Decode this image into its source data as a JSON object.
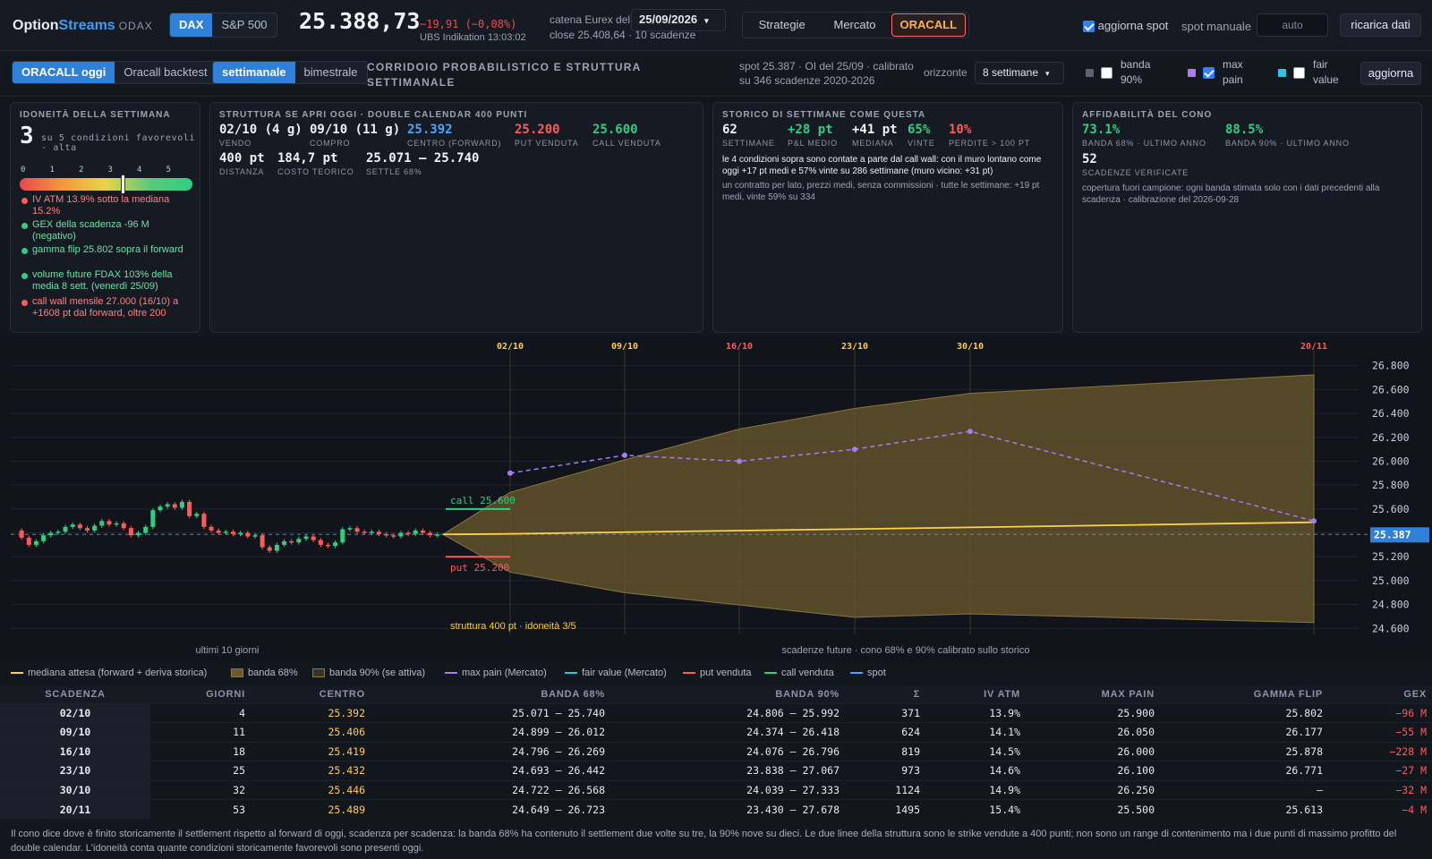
{
  "header": {
    "brand_a": "Option",
    "brand_b": "Streams",
    "brand_sub": "ODAX",
    "instruments": [
      "DAX",
      "S&P 500"
    ],
    "price": "25.388,73",
    "change": "−19,91 (−0,08%)",
    "ubs": "UBS Indikation 13:03:02",
    "chain_label": "catena Eurex del",
    "chain_date": "25/09/2026",
    "chain_info": "close 25.408,64 · 10 scadenze",
    "tabs": [
      "Strategie",
      "Mercato",
      "ORACALL"
    ],
    "spot_update_label": "aggiorna spot",
    "manual_spot_label": "spot manuale",
    "manual_spot_placeholder": "auto",
    "reload_label": "ricarica dati"
  },
  "subheader": {
    "modes": [
      "ORACALL oggi",
      "Oracall backtest"
    ],
    "periods": [
      "settimanale",
      "bimestrale"
    ],
    "title": "CORRIDOIO PROBABILISTICO E STRUTTURA SETTIMANALE",
    "spot_info_1": "spot 25.387 · OI del 25/09 · calibrato",
    "spot_info_2": "su 346 scadenze 2020-2026",
    "horizon_label": "orizzonte",
    "horizon_value": "8 settimane",
    "toggles": [
      {
        "label1": "banda",
        "label2": "90%",
        "color": "#5b6472",
        "checked": false
      },
      {
        "label1": "max",
        "label2": "pain",
        "color": "#a77df0",
        "checked": true
      },
      {
        "label1": "fair",
        "label2": "value",
        "color": "#2ec4e6",
        "checked": false
      }
    ],
    "update_label": "aggiorna"
  },
  "suitability": {
    "title": "IDONEITÀ DELLA SETTIMANA",
    "score": "3",
    "desc": "su 5 condizioni favorevoli · alta",
    "score_value": 3,
    "scale": [
      "0",
      "1",
      "2",
      "3",
      "4",
      "5"
    ],
    "conditions": [
      {
        "text": "IV ATM 13.9% sotto la mediana 15.2%",
        "color": "#ff5a5a",
        "text_color": "#ff8080"
      },
      {
        "text": "GEX della scadenza -96 M (negativo)",
        "color": "#2fcf82",
        "text_color": "#6fe0a6"
      },
      {
        "text": "gamma flip 25.802 sopra il forward",
        "color": "#2fcf82",
        "text_color": "#6fe0a6"
      },
      {
        "text": "volume future FDAX 103% della media 8 sett. (venerdì 25/09)",
        "color": "#2fcf82",
        "text_color": "#6fe0a6"
      },
      {
        "text": "call wall mensile 27.000 (16/10) a +1608 pt dal forward, oltre 200",
        "color": "#ff5a5a",
        "text_color": "#ff8080"
      }
    ]
  },
  "structure": {
    "title": "STRUTTURA SE APRI OGGI · DOUBLE CALENDAR 400 PUNTI",
    "row1": [
      {
        "v": "02/10 (4 g)",
        "k": "VENDO",
        "color": "#eef1f5"
      },
      {
        "v": "09/10 (11 g)",
        "k": "COMPRO",
        "color": "#eef1f5"
      },
      {
        "v": "25.392",
        "k": "CENTRO (FORWARD)",
        "color": "#4aa3ff"
      },
      {
        "v": "25.200",
        "k": "PUT VENDUTA",
        "color": "#ff5a5a"
      },
      {
        "v": "25.600",
        "k": "CALL VENDUTA",
        "color": "#2fcf82"
      }
    ],
    "row2": [
      {
        "v": "400 pt",
        "k": "DISTANZA",
        "color": "#eef1f5"
      },
      {
        "v": "184,7 pt",
        "k": "COSTO TEORICO",
        "color": "#eef1f5"
      },
      {
        "v": "25.071 — 25.740",
        "k": "SETTLE 68%",
        "color": "#eef1f5"
      }
    ]
  },
  "history": {
    "title": "STORICO DI SETTIMANE COME QUESTA",
    "stats": [
      {
        "v": "62",
        "k": "SETTIMANE",
        "color": "#eef1f5"
      },
      {
        "v": "+28 pt",
        "k": "P&L MEDIO",
        "color": "#2fcf82"
      },
      {
        "v": "+41 pt",
        "k": "MEDIANA",
        "color": "#eef1f5"
      },
      {
        "v": "65%",
        "k": "VINTE",
        "color": "#2fcf82"
      },
      {
        "v": "10%",
        "k": "PERDITE > 100 PT",
        "color": "#ff5a5a"
      }
    ],
    "note1": "le 4 condizioni sopra sono contate a parte dal call wall: con il muro lontano come oggi +17 pt medi e 57% vinte su 286 settimane (muro vicino: +31 pt)",
    "note2": "un contratto per lato, prezzi medi, senza commissioni · tutte le settimane: +19 pt medi, vinte 59% su 334"
  },
  "reliability": {
    "title": "AFFIDABILITÀ DEL CONO",
    "stats": [
      {
        "v": "73.1%",
        "k": "BANDA 68% · ULTIMO ANNO",
        "color": "#2fcf82"
      },
      {
        "v": "88.5%",
        "k": "BANDA 90% · ULTIMO ANNO",
        "color": "#2fcf82"
      }
    ],
    "count": "52",
    "count_label": "SCADENZE VERIFICATE",
    "note": "copertura fuori campione: ogni banda stimata solo con i dati precedenti alla scadenza · calibrazione del 2026-09-28"
  },
  "chart_data": {
    "type": "line",
    "ylim": [
      24550,
      26850
    ],
    "yticks": [
      "26.800",
      "26.600",
      "26.400",
      "26.200",
      "26.000",
      "25.800",
      "25.600",
      "25.400",
      "25.200",
      "25.000",
      "24.800",
      "24.600"
    ],
    "ytick_values": [
      26800,
      26600,
      26400,
      26200,
      26000,
      25800,
      25600,
      25400,
      25200,
      25000,
      24800,
      24600
    ],
    "spot": 25387,
    "spot_label": "25.387",
    "expiries": [
      {
        "label": "02/10",
        "days": 4,
        "center": 25392,
        "b68": [
          25071,
          25740
        ],
        "b90": [
          24806,
          25992
        ],
        "max_pain": 25900,
        "color": "#ffcc55"
      },
      {
        "label": "09/10",
        "days": 11,
        "center": 25406,
        "b68": [
          24899,
          26012
        ],
        "b90": [
          24374,
          26418
        ],
        "max_pain": 26050,
        "color": "#ffcc55"
      },
      {
        "label": "16/10",
        "days": 18,
        "center": 25419,
        "b68": [
          24796,
          26269
        ],
        "b90": [
          24076,
          26796
        ],
        "max_pain": 26000,
        "color": "#ff5a5a"
      },
      {
        "label": "23/10",
        "days": 25,
        "center": 25432,
        "b68": [
          24693,
          26442
        ],
        "b90": [
          23838,
          27067
        ],
        "max_pain": 26100,
        "color": "#ffcc55"
      },
      {
        "label": "30/10",
        "days": 32,
        "center": 25446,
        "b68": [
          24722,
          26568
        ],
        "b90": [
          24039,
          27333
        ],
        "max_pain": 26250,
        "color": "#ffcc55"
      },
      {
        "label": "20/11",
        "days": 53,
        "center": 25489,
        "b68": [
          24649,
          26723
        ],
        "b90": [
          23430,
          27678
        ],
        "max_pain": 25500,
        "color": "#ff5a5a"
      }
    ],
    "call_strike": 25600,
    "call_label": "call 25.600",
    "put_strike": 25200,
    "put_label": "put 25.200",
    "structure_label": "struttura 400 pt · idoneità 3/5",
    "left_caption": "ultimi 10 giorni",
    "right_caption": "scadenze future · cono 68% e 90% calibrato sullo storico"
  },
  "legend": [
    {
      "label": "mediana attesa (forward + deriva storica)",
      "type": "line",
      "color": "#ffd24a"
    },
    {
      "label": "banda 68%",
      "type": "box",
      "color": "#6b5a2e"
    },
    {
      "label": "banda 90% (se attiva)",
      "type": "box",
      "color": "#3a3424"
    },
    {
      "label": "max pain (Mercato)",
      "type": "line",
      "color": "#a77df0"
    },
    {
      "label": "fair value (Mercato)",
      "type": "line",
      "color": "#2ec4e6"
    },
    {
      "label": "put venduta",
      "type": "line",
      "color": "#ff5a5a"
    },
    {
      "label": "call venduta",
      "type": "line",
      "color": "#2fcf82"
    },
    {
      "label": "spot",
      "type": "line",
      "color": "#4aa3ff"
    }
  ],
  "table": {
    "headers": [
      "SCADENZA",
      "GIORNI",
      "CENTRO",
      "BANDA 68%",
      "BANDA 90%",
      "Σ",
      "IV ATM",
      "MAX PAIN",
      "GAMMA FLIP",
      "GEX"
    ],
    "rows": [
      [
        "02/10",
        "4",
        "25.392",
        "25.071 — 25.740",
        "24.806 — 25.992",
        "371",
        "13.9%",
        "25.900",
        "25.802",
        "−96 M"
      ],
      [
        "09/10",
        "11",
        "25.406",
        "24.899 — 26.012",
        "24.374 — 26.418",
        "624",
        "14.1%",
        "26.050",
        "26.177",
        "−55 M"
      ],
      [
        "16/10",
        "18",
        "25.419",
        "24.796 — 26.269",
        "24.076 — 26.796",
        "819",
        "14.5%",
        "26.000",
        "25.878",
        "−228 M"
      ],
      [
        "23/10",
        "25",
        "25.432",
        "24.693 — 26.442",
        "23.838 — 27.067",
        "973",
        "14.6%",
        "26.100",
        "26.771",
        "−27 M"
      ],
      [
        "30/10",
        "32",
        "25.446",
        "24.722 — 26.568",
        "24.039 — 27.333",
        "1124",
        "14.9%",
        "26.250",
        "—",
        "−32 M"
      ],
      [
        "20/11",
        "53",
        "25.489",
        "24.649 — 26.723",
        "23.430 — 27.678",
        "1495",
        "15.4%",
        "25.500",
        "25.613",
        "−4 M"
      ]
    ]
  },
  "footer": "Il cono dice dove è finito storicamente il settlement rispetto al forward di oggi, scadenza per scadenza: la banda 68% ha contenuto il settlement due volte su tre, la 90% nove su dieci. Le due linee della struttura sono le strike vendute a 400 punti; non sono un range di contenimento ma i due punti di massimo profitto del double calendar. L'idoneità conta quante condizioni storicamente favorevoli sono presenti oggi."
}
